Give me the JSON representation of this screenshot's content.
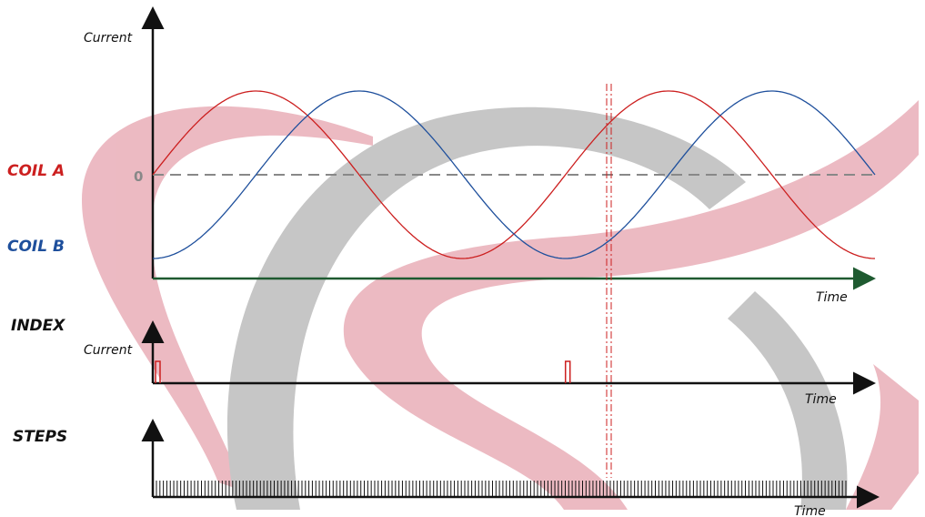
{
  "labels": {
    "coil_a": "COIL A",
    "coil_b": "COIL B",
    "index": "INDEX",
    "steps": "STEPS"
  },
  "axes": {
    "top_y": "Current",
    "top_x": "Time",
    "zero": "0",
    "index_y": "Current",
    "index_x": "Time",
    "steps_x": "Time"
  },
  "colors": {
    "coil_a": "#cc1f1f",
    "coil_b": "#1e4f9c",
    "axis": "#111111",
    "time_axis_top": "#1e5a30",
    "zero_line": "#888888",
    "marker": "#cc1f1f",
    "watermark_red": "#e9aeb8",
    "watermark_gray": "#bdbdbd"
  },
  "chart_data": {
    "type": "line",
    "title": "",
    "xlabel": "Time",
    "ylabel": "Current",
    "series": [
      {
        "name": "COIL A",
        "waveform": "sine",
        "phase_deg": 0,
        "periods": 1.75
      },
      {
        "name": "COIL B",
        "waveform": "sine",
        "phase_deg": -90,
        "periods": 1.75
      }
    ],
    "index_pulses_at_period": [
      0,
      1
    ],
    "step_count": 200
  },
  "watermark": {
    "description": "decorative logo-like swoosh",
    "colors": [
      "#e9aeb8",
      "#bdbdbd"
    ]
  }
}
